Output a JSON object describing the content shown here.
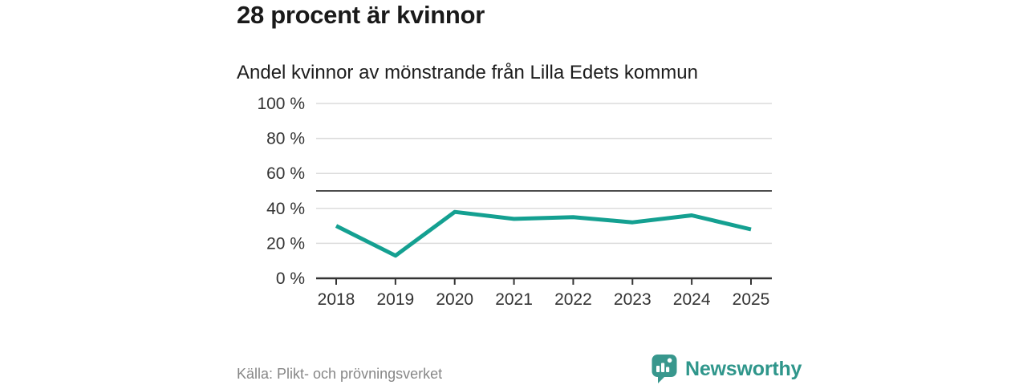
{
  "header": {
    "title": "28 procent är kvinnor",
    "subtitle": "Andel kvinnor av mönstrande från Lilla Edets kommun"
  },
  "chart_data": {
    "type": "line",
    "title": "28 procent är kvinnor",
    "subtitle": "Andel kvinnor av mönstrande från Lilla Edets kommun",
    "categories": [
      "2018",
      "2019",
      "2020",
      "2021",
      "2022",
      "2023",
      "2024",
      "2025"
    ],
    "series": [
      {
        "name": "Andel kvinnor av mönstrande",
        "values": [
          30,
          13,
          38,
          34,
          35,
          32,
          36,
          28
        ]
      }
    ],
    "unit": "%",
    "xlabel": "",
    "ylabel": "",
    "ylim": [
      0,
      100
    ],
    "y_ticks": [
      {
        "value": 0,
        "label": "0 %"
      },
      {
        "value": 20,
        "label": "20 %"
      },
      {
        "value": 40,
        "label": "40 %"
      },
      {
        "value": 60,
        "label": "60 %"
      },
      {
        "value": 80,
        "label": "80 %"
      },
      {
        "value": 100,
        "label": "100 %"
      }
    ],
    "reference_line": {
      "value": 50
    },
    "grid": true,
    "legend": "none"
  },
  "footer": {
    "source": "Källa: Plikt- och prövningsverket",
    "brand_name": "Newsworthy"
  },
  "colors": {
    "line": "#14a091",
    "grid": "#dcdcdc",
    "axis": "#333333",
    "reference_line": "#4d4d4d",
    "tick_label": "#333333",
    "title_text": "#1a1a1a",
    "source_text": "#878787",
    "brand_teal": "#2f968b",
    "logo_bubble": "#38978d",
    "background": "#ffffff"
  }
}
